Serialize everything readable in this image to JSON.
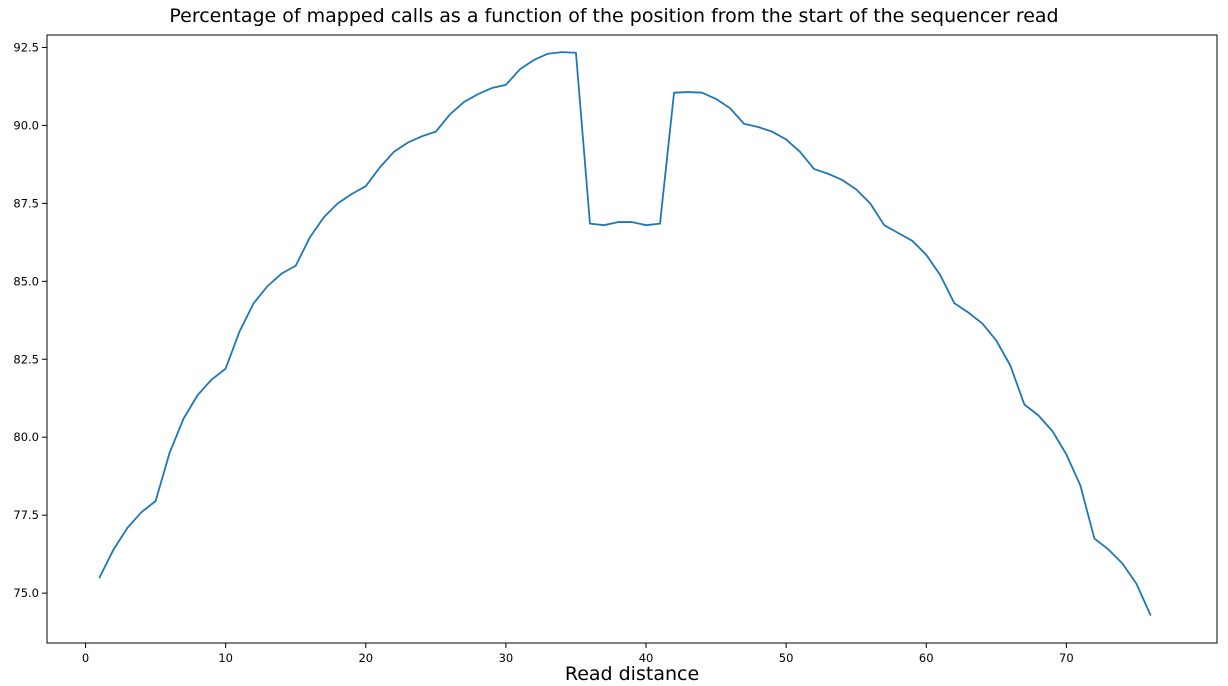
{
  "chart_data": {
    "type": "line",
    "title": "Percentage of mapped calls as a function of the position from the start of the sequencer read",
    "xlabel": "Read distance",
    "ylabel": "",
    "xlim": [
      -2.75,
      80.75
    ],
    "ylim": [
      73.4,
      92.9
    ],
    "xticks": [
      0,
      10,
      20,
      30,
      40,
      50,
      60,
      70
    ],
    "yticks": [
      75.0,
      77.5,
      80.0,
      82.5,
      85.0,
      87.5,
      90.0,
      92.5
    ],
    "grid": false,
    "series": [
      {
        "color": "#1f77b4",
        "x": [
          1,
          2,
          3,
          4,
          5,
          6,
          7,
          8,
          9,
          10,
          11,
          12,
          13,
          14,
          15,
          16,
          17,
          18,
          19,
          20,
          21,
          22,
          23,
          24,
          25,
          26,
          27,
          28,
          29,
          30,
          31,
          32,
          33,
          34,
          35,
          36,
          37,
          38,
          39,
          40,
          41,
          42,
          43,
          44,
          45,
          46,
          47,
          48,
          49,
          50,
          51,
          52,
          53,
          54,
          55,
          56,
          57,
          58,
          59,
          60,
          61,
          62,
          63,
          64,
          65,
          66,
          67,
          68,
          69,
          70,
          71,
          72,
          73,
          74,
          75,
          76
        ],
        "y": [
          75.5,
          76.4,
          77.1,
          77.6,
          77.95,
          79.5,
          80.6,
          81.35,
          81.85,
          82.2,
          83.4,
          84.3,
          84.85,
          85.25,
          85.5,
          86.4,
          87.05,
          87.5,
          87.8,
          88.05,
          88.65,
          89.15,
          89.45,
          89.65,
          89.8,
          90.35,
          90.75,
          91.0,
          91.2,
          91.3,
          91.8,
          92.1,
          92.3,
          92.35,
          92.33,
          86.85,
          86.8,
          86.9,
          86.9,
          86.8,
          86.85,
          91.05,
          91.07,
          91.05,
          90.85,
          90.55,
          90.05,
          89.95,
          89.8,
          89.55,
          89.15,
          88.6,
          88.45,
          88.25,
          87.95,
          87.5,
          86.8,
          86.55,
          86.3,
          85.85,
          85.2,
          84.3,
          84.0,
          83.65,
          83.1,
          82.3,
          81.05,
          80.7,
          80.2,
          79.45,
          78.45,
          76.75,
          76.4,
          75.95,
          75.3,
          74.3
        ]
      }
    ]
  }
}
